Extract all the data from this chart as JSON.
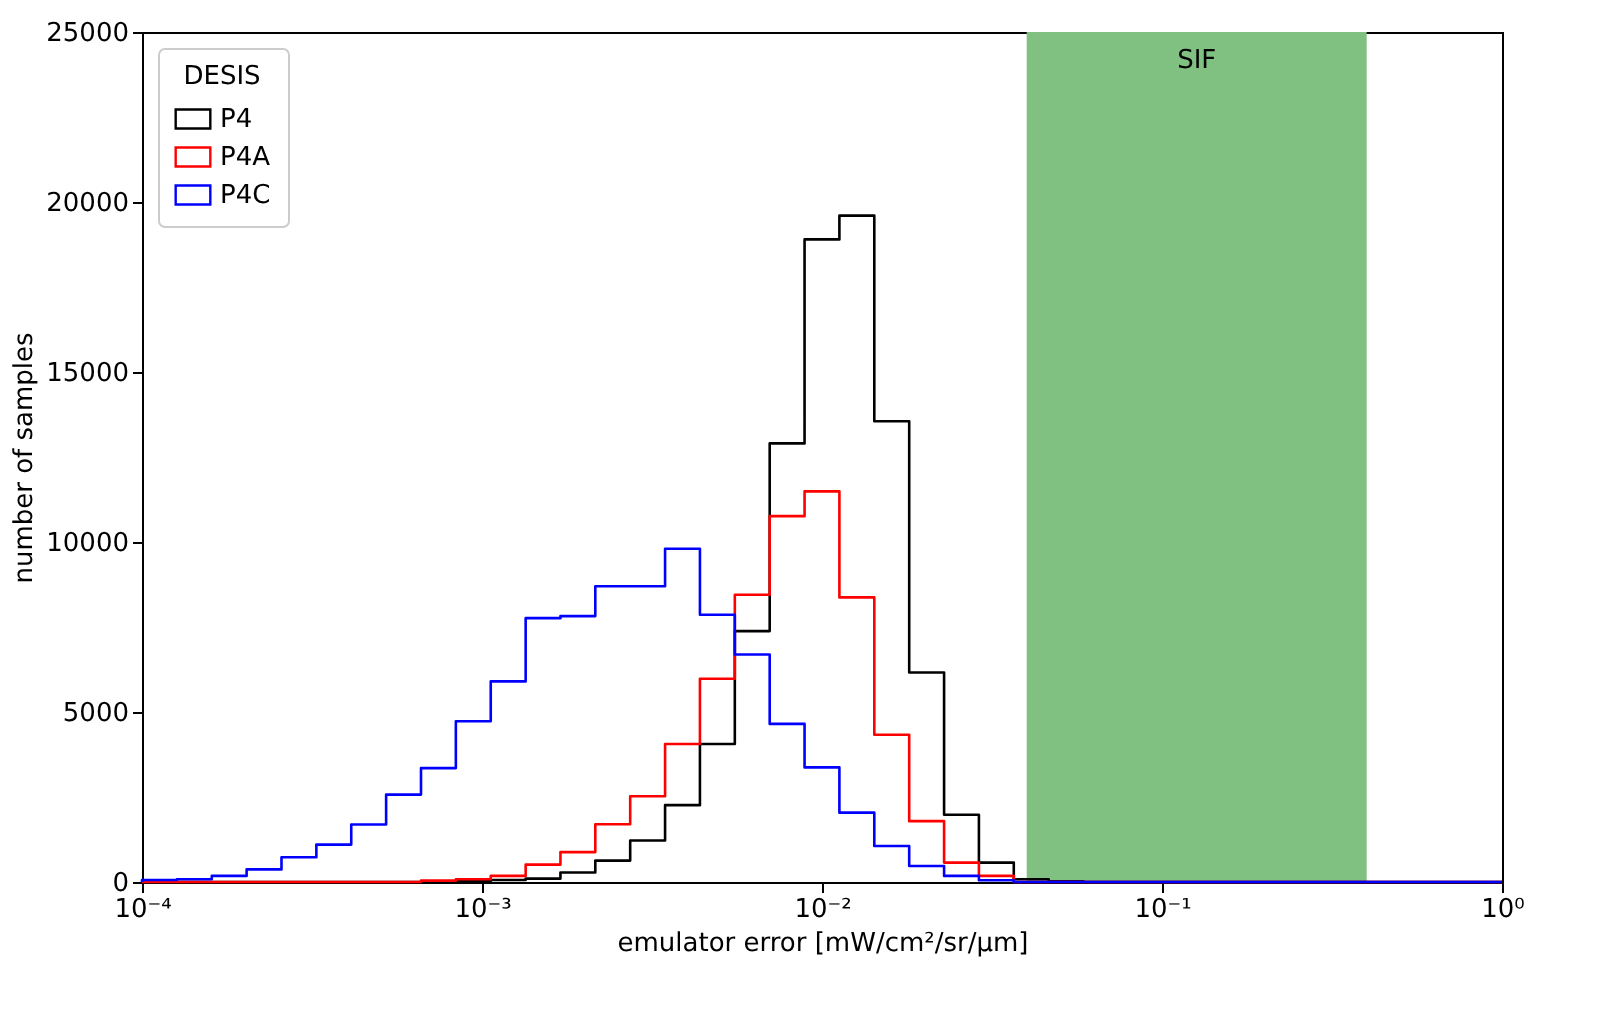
{
  "chart_data": {
    "type": "histogram",
    "xlabel": "emulator error  [mW/cm²/sr/μm]",
    "ylabel": "number of samples",
    "legend_title": "DESIS",
    "bins": [
      0.0001,
      0.0001267,
      0.0001604,
      0.0002031,
      0.0002572,
      0.0003257,
      0.0004125,
      0.0005224,
      0.0006616,
      0.0008377,
      0.001061,
      0.001344,
      0.001701,
      0.002154,
      0.002728,
      0.003455,
      0.004375,
      0.005541,
      0.007017,
      0.008886,
      0.01125,
      0.01425,
      0.01805,
      0.02286,
      0.02894,
      0.03665,
      0.04642,
      0.05878,
      0.07444,
      0.09427,
      0.1194,
      0.1512,
      0.1914,
      0.2424,
      0.307,
      0.3888,
      0.4924,
      0.6236,
      0.7897,
      1
    ],
    "series": [
      {
        "name": "P4",
        "color": "#000000",
        "values": [
          0,
          0,
          0,
          0,
          0,
          0,
          0,
          0,
          0,
          30,
          60,
          100,
          280,
          630,
          1220,
          2260,
          4060,
          7380,
          12900,
          18900,
          19600,
          13550,
          6160,
          1980,
          570,
          80,
          20,
          0,
          0,
          0,
          0,
          0,
          0,
          0,
          0,
          0,
          0,
          0,
          0
        ]
      },
      {
        "name": "P4A",
        "color": "#ff0000",
        "values": [
          0,
          0,
          0,
          0,
          0,
          0,
          0,
          0,
          40,
          80,
          180,
          510,
          880,
          1700,
          2520,
          4060,
          5980,
          8450,
          10760,
          11490,
          8370,
          4330,
          1790,
          570,
          180,
          0,
          0,
          0,
          0,
          0,
          0,
          0,
          0,
          0,
          0,
          0,
          0,
          0,
          0
        ]
      },
      {
        "name": "P4C",
        "color": "#0000ff",
        "values": [
          60,
          80,
          180,
          370,
          730,
          1100,
          1690,
          2570,
          3350,
          4730,
          5900,
          7760,
          7820,
          8700,
          8700,
          9800,
          7860,
          6690,
          4650,
          3370,
          2040,
          1060,
          470,
          180,
          50,
          0,
          0,
          0,
          0,
          0,
          0,
          0,
          0,
          0,
          0,
          0,
          0,
          0,
          0
        ]
      }
    ],
    "log": "x",
    "xlim": [
      0.0001,
      1
    ],
    "xticks": [
      {
        "value": 0.0001,
        "label": "10⁻⁴"
      },
      {
        "value": 0.001,
        "label": "10⁻³"
      },
      {
        "value": 0.01,
        "label": "10⁻²"
      },
      {
        "value": 0.1,
        "label": "10⁻¹"
      },
      {
        "value": 1,
        "label": "10⁰"
      }
    ],
    "ylim": [
      0,
      25000
    ],
    "yticks": [
      0,
      5000,
      10000,
      15000,
      20000,
      25000
    ],
    "bands": [
      {
        "axis": "x",
        "from": 0.04,
        "to": 0.4,
        "label": "SIF",
        "color": "#80c080"
      }
    ],
    "grid": false,
    "legend": "top left"
  }
}
